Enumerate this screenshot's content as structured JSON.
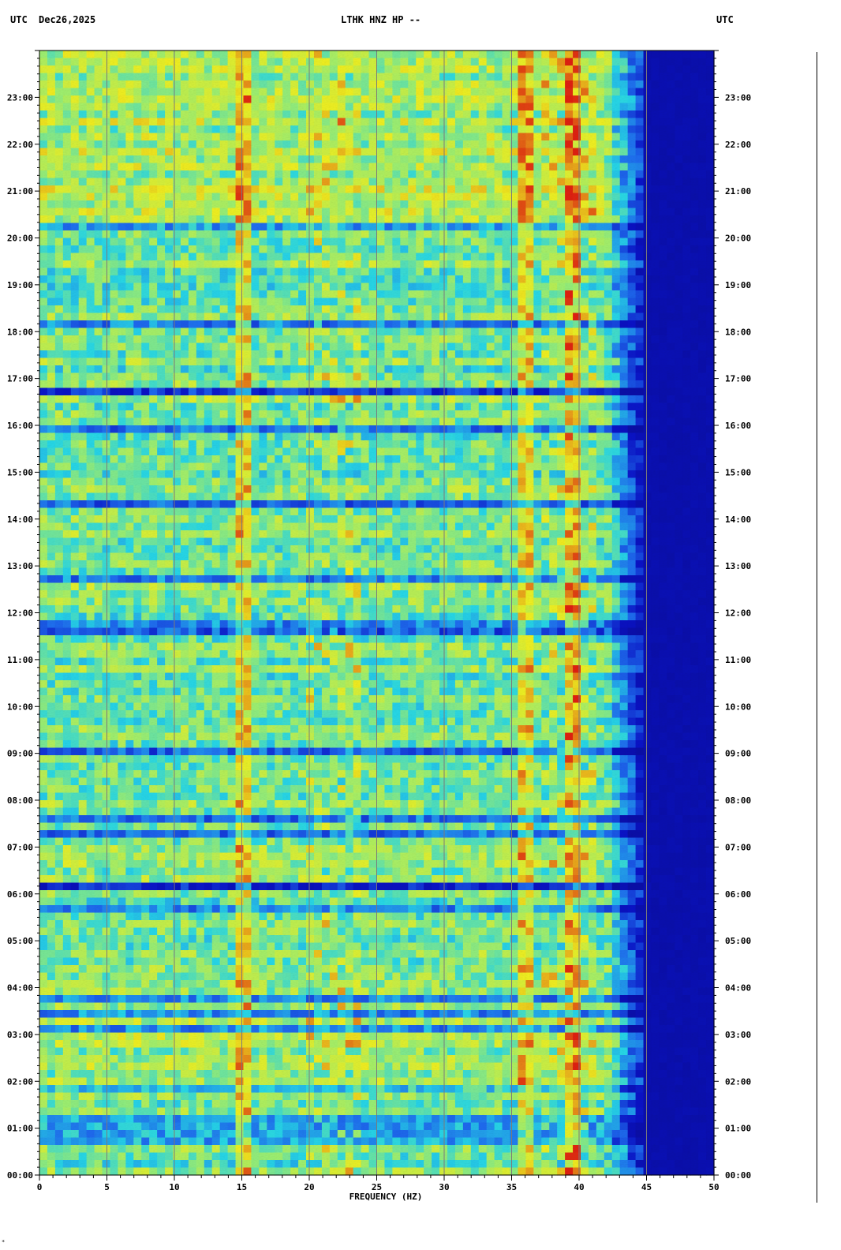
{
  "header": {
    "left_timezone": "UTC",
    "date": "Dec26,2025",
    "station_title": "LTHK HNZ HP --",
    "right_timezone": "UTC"
  },
  "corner_mark": "*",
  "colors": {
    "low": "#0a12c8",
    "mid_low": "#1e6cf0",
    "cyan": "#26d8e8",
    "green": "#9ef070",
    "yellow": "#f0f020",
    "red": "#e02010",
    "deep_blue": "#0a0ea8",
    "grid": "#7a7a7a"
  },
  "chart_data": {
    "type": "heatmap",
    "title": "LTHK HNZ HP --",
    "xlabel": "FREQUENCY (HZ)",
    "ylabel": "",
    "xlim": [
      0,
      50
    ],
    "ylim": [
      "00:00",
      "24:00"
    ],
    "x_ticks": [
      "0",
      "5",
      "10",
      "15",
      "20",
      "25",
      "30",
      "35",
      "40",
      "45",
      "50"
    ],
    "x_tick_values": [
      0,
      5,
      10,
      15,
      20,
      25,
      30,
      35,
      40,
      45,
      50
    ],
    "y_ticks": [
      "00:00",
      "01:00",
      "02:00",
      "03:00",
      "04:00",
      "05:00",
      "06:00",
      "07:00",
      "08:00",
      "09:00",
      "10:00",
      "11:00",
      "12:00",
      "13:00",
      "14:00",
      "15:00",
      "16:00",
      "17:00",
      "18:00",
      "19:00",
      "20:00",
      "21:00",
      "22:00",
      "23:00"
    ],
    "y_tick_hours": [
      0,
      1,
      2,
      3,
      4,
      5,
      6,
      7,
      8,
      9,
      10,
      11,
      12,
      13,
      14,
      15,
      16,
      17,
      18,
      19,
      20,
      21,
      22,
      23
    ],
    "y_axis_timezone_left": "UTC",
    "y_axis_timezone_right": "UTC",
    "grid": true,
    "noise_rolloff_hz": 44,
    "quiet_bands_hours": [
      {
        "start": 6.05,
        "end": 6.3,
        "level": 0.05
      },
      {
        "start": 16.65,
        "end": 16.75,
        "level": 0.1
      },
      {
        "start": 15.8,
        "end": 16.05,
        "level": 0.2
      },
      {
        "start": 20.45,
        "end": 20.55,
        "level": 0.1
      },
      {
        "start": 3.95,
        "end": 4.05,
        "level": 0.15
      },
      {
        "start": 0.6,
        "end": 1.3,
        "level": 0.3
      }
    ],
    "persistent_lines_hz": [
      15,
      36,
      39.5
    ]
  }
}
